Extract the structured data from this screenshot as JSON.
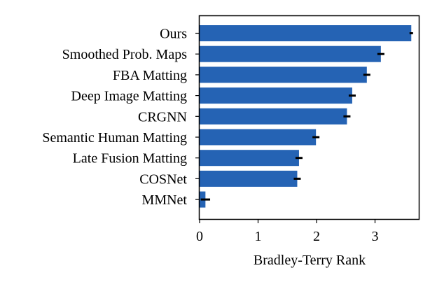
{
  "chart_data": {
    "type": "bar",
    "orientation": "horizontal",
    "title": "",
    "xlabel": "Bradley-Terry Rank",
    "ylabel": "",
    "xlim": [
      0,
      3.75
    ],
    "xticks": [
      "0",
      "1",
      "2",
      "3"
    ],
    "bar_color": "#2563b4",
    "error_color": "#000000",
    "grid": false,
    "categories": [
      "Ours",
      "Smoothed Prob. Maps",
      "FBA Matting",
      "Deep Image Matting",
      "CRGNN",
      "Semantic Human Matting",
      "Late Fusion Matting",
      "COSNet",
      "MMNet"
    ],
    "values": [
      3.62,
      3.1,
      2.86,
      2.61,
      2.52,
      1.99,
      1.7,
      1.67,
      0.1
    ],
    "errors": [
      0.03,
      0.06,
      0.06,
      0.06,
      0.06,
      0.06,
      0.06,
      0.06,
      0.08
    ]
  }
}
